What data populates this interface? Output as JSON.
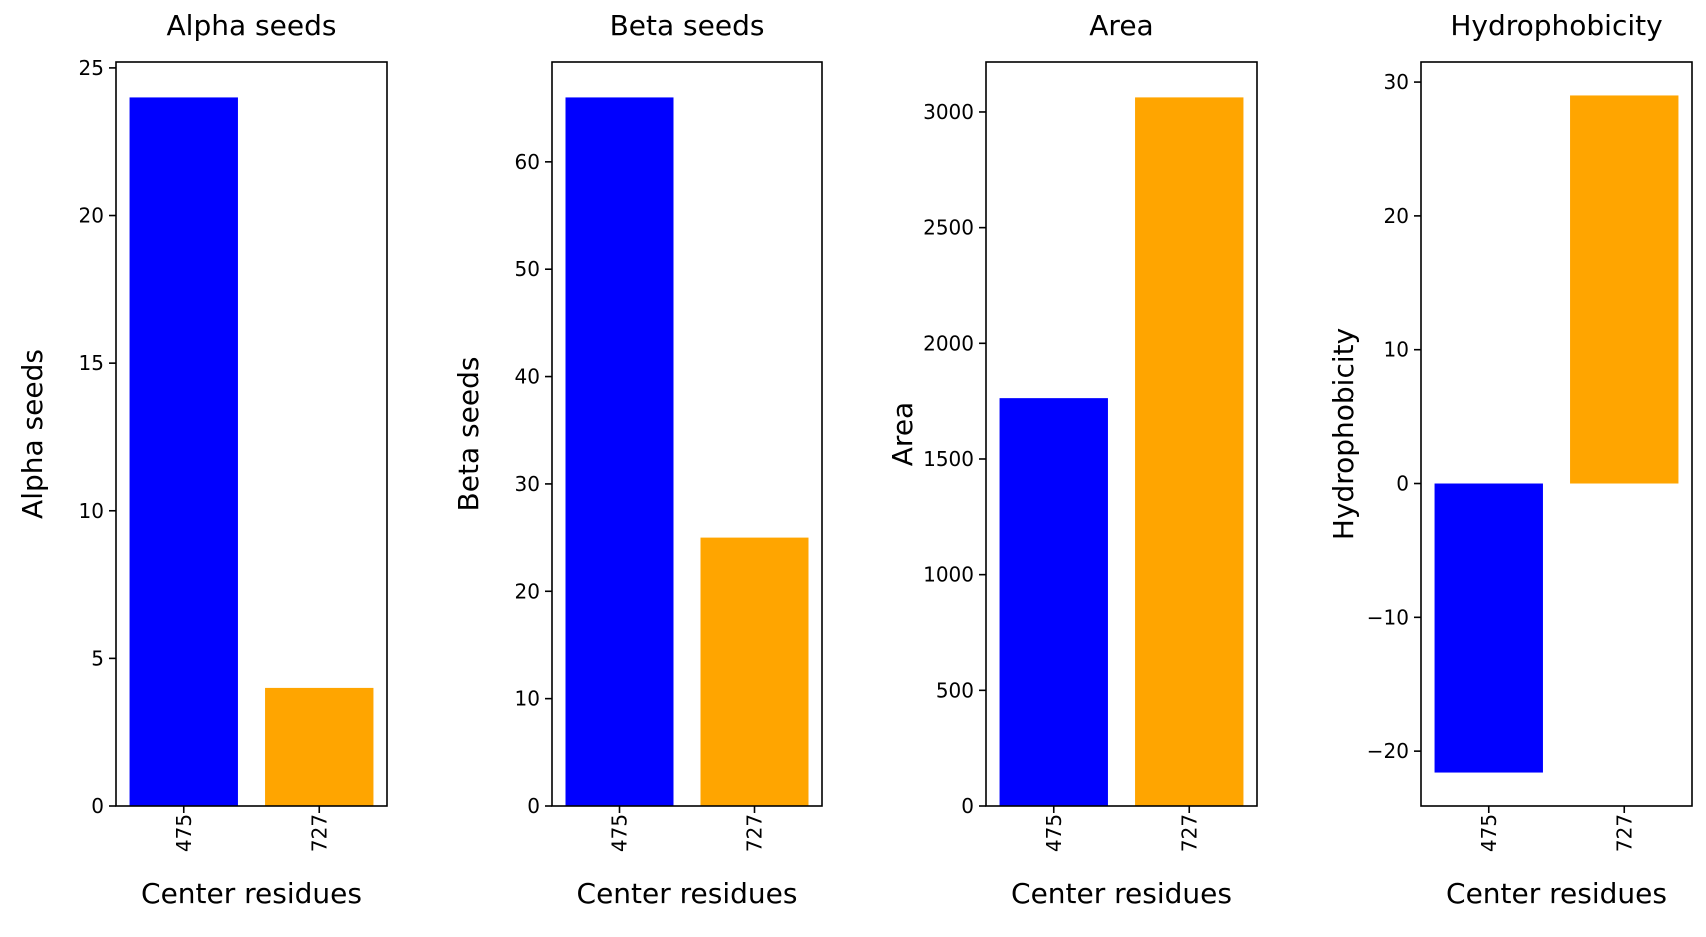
{
  "colors": {
    "series_475": "#0000ff",
    "series_727": "#ffa500",
    "axes": "#000000",
    "background": "#ffffff"
  },
  "chart_data": [
    {
      "type": "bar",
      "title": "Alpha seeds",
      "xlabel": "Center residues",
      "ylabel": "Alpha seeds",
      "categories": [
        "475",
        "727"
      ],
      "values": [
        24,
        4
      ],
      "ylim": [
        0,
        25.2
      ],
      "yticks": [
        0,
        5,
        10,
        15,
        20,
        25
      ],
      "ytick_labels": [
        "0",
        "5",
        "10",
        "15",
        "20",
        "25"
      ],
      "grid": false
    },
    {
      "type": "bar",
      "title": "Beta seeds",
      "xlabel": "Center residues",
      "ylabel": "Beta seeds",
      "categories": [
        "475",
        "727"
      ],
      "values": [
        66,
        25
      ],
      "ylim": [
        0,
        69.3
      ],
      "yticks": [
        0,
        10,
        20,
        30,
        40,
        50,
        60
      ],
      "ytick_labels": [
        "0",
        "10",
        "20",
        "30",
        "40",
        "50",
        "60"
      ],
      "grid": false
    },
    {
      "type": "bar",
      "title": "Area",
      "xlabel": "Center residues",
      "ylabel": "Area",
      "categories": [
        "475",
        "727"
      ],
      "values": [
        1763,
        3063
      ],
      "ylim": [
        0,
        3216
      ],
      "yticks": [
        0,
        500,
        1000,
        1500,
        2000,
        2500,
        3000
      ],
      "ytick_labels": [
        "0",
        "500",
        "1000",
        "1500",
        "2000",
        "2500",
        "3000"
      ],
      "grid": false
    },
    {
      "type": "bar",
      "title": "Hydrophobicity",
      "xlabel": "Center residues",
      "ylabel": "Hydrophobicity",
      "categories": [
        "475",
        "727"
      ],
      "values": [
        -21.6,
        29.0
      ],
      "ylim": [
        -24.1,
        31.5
      ],
      "yticks": [
        -20,
        -10,
        0,
        10,
        20,
        30
      ],
      "ytick_labels": [
        "−20",
        "−10",
        "0",
        "10",
        "20",
        "30"
      ],
      "grid": false
    }
  ]
}
